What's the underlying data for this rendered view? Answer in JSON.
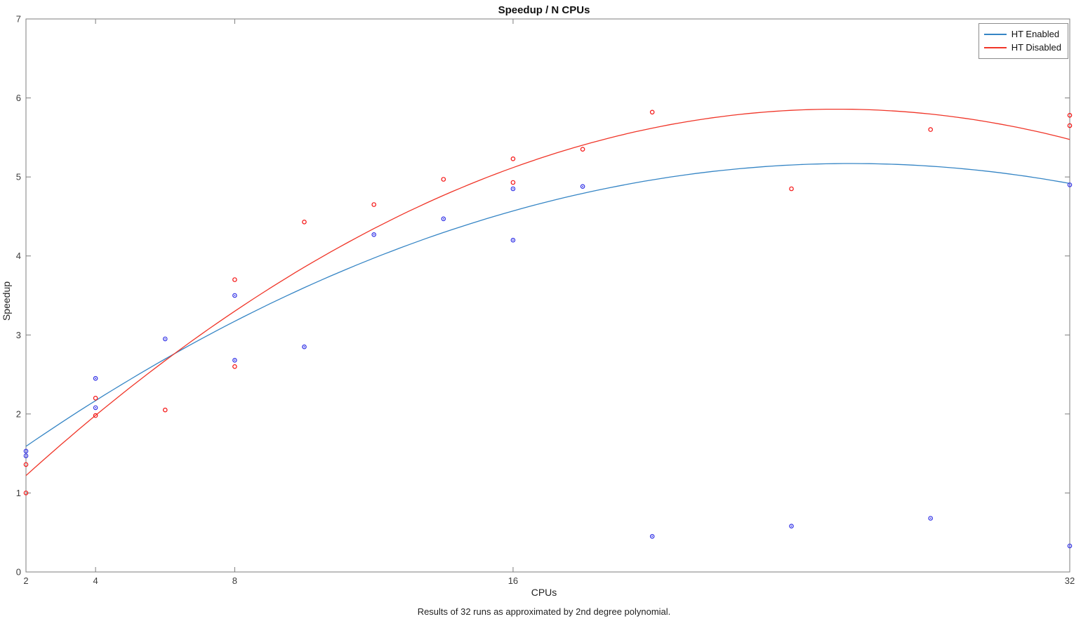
{
  "figure": {
    "title": "Speedup / N CPUs",
    "xlabel": "CPUs",
    "ylabel": "Speedup",
    "caption": "Results of 32 runs as approximated by 2nd degree polynomial."
  },
  "chart_data": {
    "type": "scatter",
    "title": "Speedup / N CPUs",
    "xlabel": "CPUs",
    "ylabel": "Speedup",
    "caption": "Results of 32 runs as approximated by 2nd degree polynomial.",
    "xlim": [
      2,
      32
    ],
    "ylim": [
      0,
      7
    ],
    "x_scale": "linear",
    "x_ticks": [
      2,
      4,
      8,
      16,
      32
    ],
    "y_ticks": [
      0,
      1,
      2,
      3,
      4,
      5,
      6,
      7
    ],
    "grid": false,
    "legend_position": "top-right",
    "axis_color": "#7d7d7d",
    "tick_label_color": "#3c3c3c",
    "series": [
      {
        "name": "HT Enabled",
        "marker_color": "#3232e6",
        "line_color": "#3585c5",
        "points": [
          [
            2,
            1.53
          ],
          [
            2,
            1.47
          ],
          [
            4,
            2.45
          ],
          [
            4,
            2.08
          ],
          [
            6,
            2.95
          ],
          [
            8,
            3.5
          ],
          [
            8,
            2.68
          ],
          [
            10,
            2.85
          ],
          [
            12,
            4.27
          ],
          [
            14,
            4.47
          ],
          [
            16,
            4.85
          ],
          [
            16,
            4.2
          ],
          [
            18,
            4.88
          ],
          [
            20,
            0.45
          ],
          [
            24,
            0.58
          ],
          [
            28,
            0.68
          ],
          [
            32,
            4.9
          ],
          [
            32,
            0.33
          ]
        ],
        "fit": {
          "type": "poly2",
          "coeffs": [
            -0.00637,
            0.3275,
            0.9606
          ]
        }
      },
      {
        "name": "HT Disabled",
        "marker_color": "#f51414",
        "line_color": "#f03528",
        "points": [
          [
            2,
            1.36
          ],
          [
            2,
            1.0
          ],
          [
            4,
            2.2
          ],
          [
            4,
            1.98
          ],
          [
            6,
            2.05
          ],
          [
            8,
            3.7
          ],
          [
            8,
            2.6
          ],
          [
            10,
            4.43
          ],
          [
            12,
            4.65
          ],
          [
            14,
            4.97
          ],
          [
            16,
            5.23
          ],
          [
            16,
            4.93
          ],
          [
            18,
            5.35
          ],
          [
            20,
            5.82
          ],
          [
            24,
            4.85
          ],
          [
            28,
            5.6
          ],
          [
            32,
            5.78
          ],
          [
            32,
            5.65
          ]
        ],
        "fit": {
          "type": "poly2",
          "coeffs": [
            -0.00854,
            0.4322,
            0.3897
          ]
        }
      }
    ]
  }
}
